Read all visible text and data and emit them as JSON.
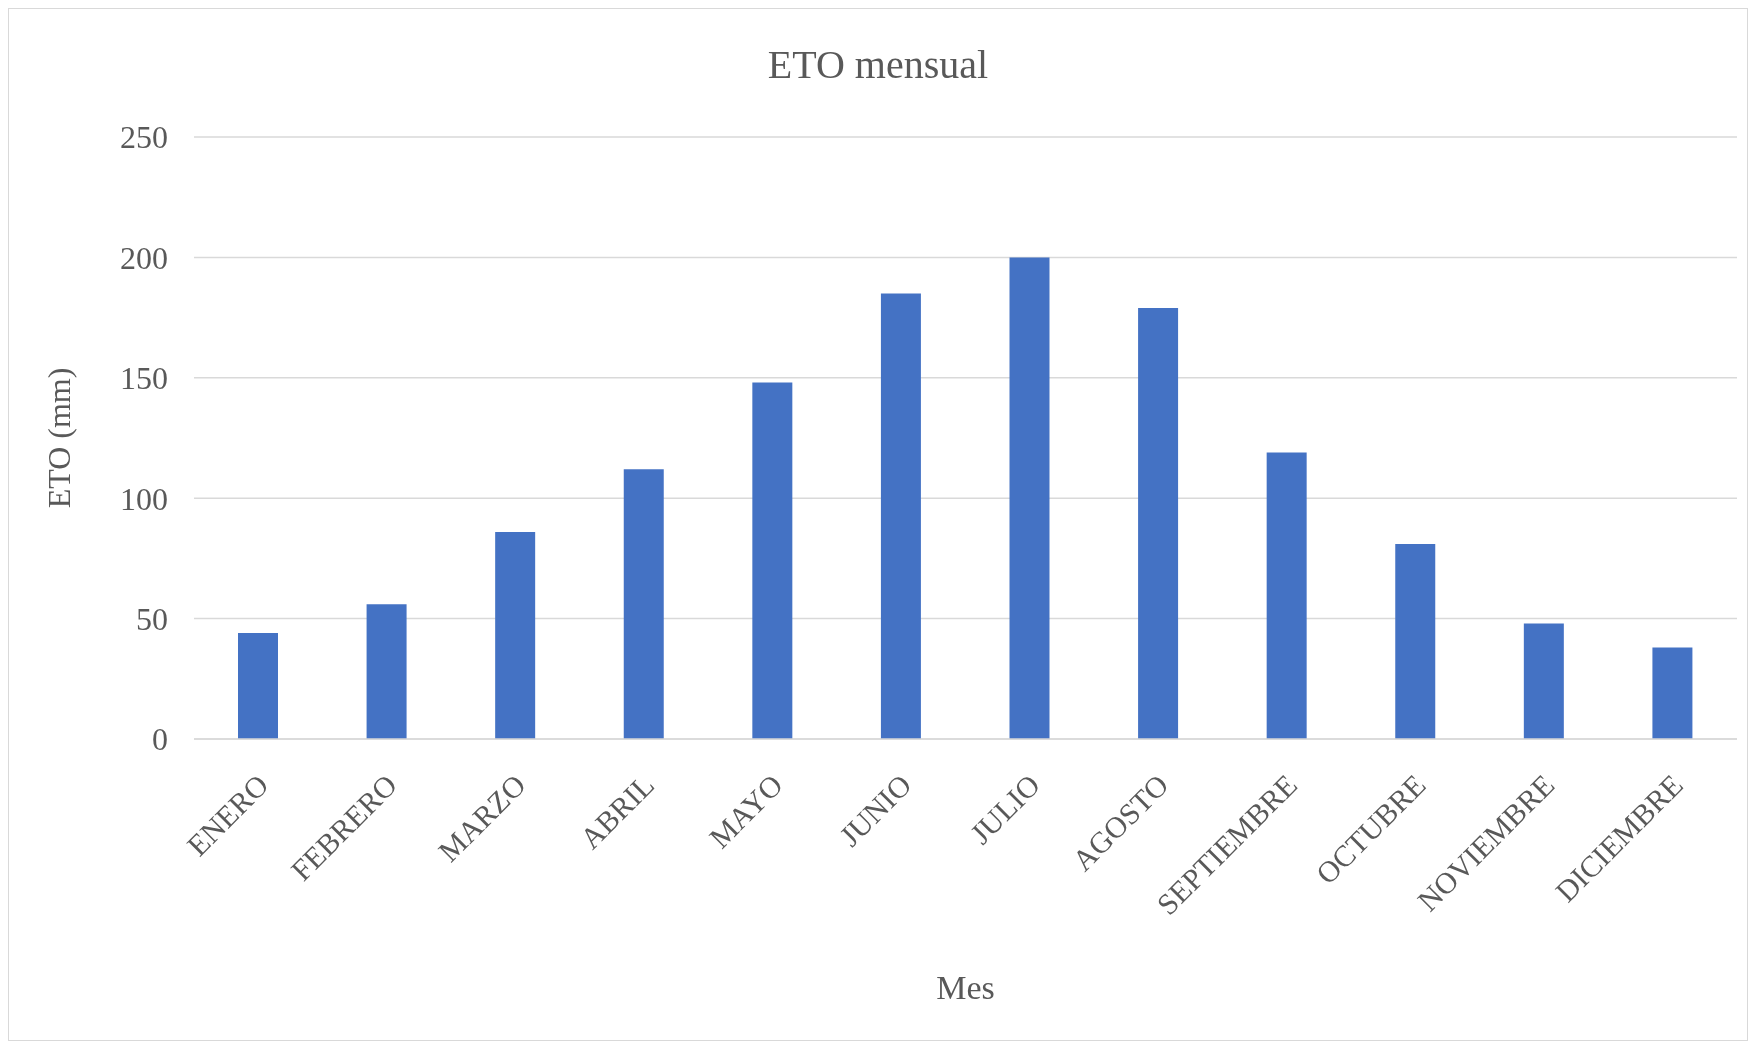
{
  "chart_data": {
    "type": "bar",
    "title": "ETO mensual",
    "xlabel": "Mes",
    "ylabel": "ETO (mm)",
    "categories": [
      "ENERO",
      "FEBRERO",
      "MARZO",
      "ABRIL",
      "MAYO",
      "JUNIO",
      "JULIO",
      "AGOSTO",
      "SEPTIEMBRE",
      "OCTUBRE",
      "NOVIEMBRE",
      "DICIEMBRE"
    ],
    "values": [
      44,
      56,
      86,
      112,
      148,
      185,
      200,
      179,
      119,
      81,
      48,
      38
    ],
    "color": "#4472c4",
    "ylim": [
      0,
      250
    ],
    "yticks": [
      0,
      50,
      100,
      150,
      200,
      250
    ],
    "grid": "y"
  }
}
